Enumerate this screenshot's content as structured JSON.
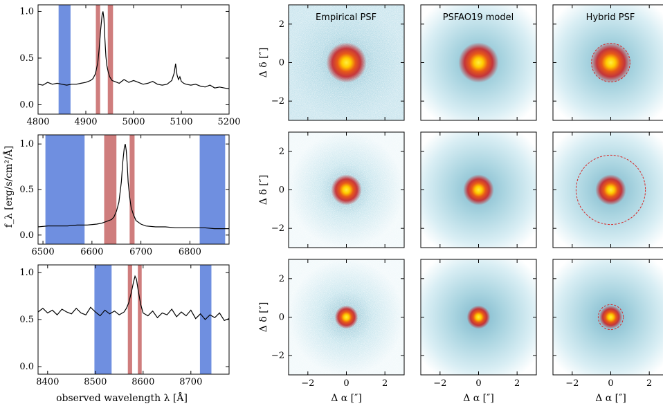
{
  "figure": {
    "spectra_ylabel": "f_λ [erg/s/cm²/Å]",
    "spectra_xlabel": "observed wavelength λ [Å]",
    "psf_xlabel": "Δ α [″]",
    "psf_ylabel": "Δ δ [″]",
    "column_titles": [
      "Empirical PSF",
      "PSFAO19 model",
      "Hybrid PSF"
    ]
  },
  "colors": {
    "blue_band": "#6f8fe0",
    "red_band": "#cf7d7d",
    "psf_core": "#ffdd00",
    "psf_mid": "#cc2a2a",
    "psf_halo": "#a9d4e0",
    "aperture": "#d62828"
  },
  "chart_data": [
    {
      "type": "line",
      "panel": "spectrum-1",
      "xlim": [
        4800,
        5200
      ],
      "ylim": [
        -0.1,
        1.07
      ],
      "xticks": [
        4800,
        4900,
        5000,
        5100,
        5200
      ],
      "yticks": [
        0.0,
        0.5,
        1.0
      ],
      "ytick_labels": [
        "0.0",
        "0.5",
        "1.0"
      ],
      "blue_bands": [
        [
          4843,
          4868
        ]
      ],
      "red_bands": [
        [
          4921,
          4930
        ],
        [
          4946,
          4957
        ]
      ],
      "series": [
        {
          "x": [
            4800,
            4810,
            4820,
            4830,
            4840,
            4850,
            4860,
            4870,
            4880,
            4890,
            4900,
            4910,
            4915,
            4920,
            4925,
            4928,
            4931,
            4934,
            4936,
            4938,
            4940,
            4942,
            4944,
            4947,
            4950,
            4955,
            4960,
            4970,
            4980,
            4990,
            5000,
            5010,
            5020,
            5030,
            5040,
            5050,
            5060,
            5070,
            5080,
            5085,
            5088,
            5091,
            5094,
            5097,
            5100,
            5105,
            5110,
            5120,
            5130,
            5140,
            5150,
            5160,
            5170,
            5180,
            5190,
            5200
          ],
          "y": [
            0.22,
            0.21,
            0.24,
            0.22,
            0.23,
            0.22,
            0.21,
            0.22,
            0.22,
            0.23,
            0.24,
            0.26,
            0.28,
            0.33,
            0.45,
            0.6,
            0.8,
            0.96,
            1.0,
            0.92,
            0.7,
            0.52,
            0.42,
            0.35,
            0.3,
            0.26,
            0.25,
            0.23,
            0.27,
            0.24,
            0.26,
            0.24,
            0.22,
            0.23,
            0.25,
            0.22,
            0.21,
            0.22,
            0.26,
            0.34,
            0.44,
            0.32,
            0.27,
            0.3,
            0.25,
            0.23,
            0.22,
            0.21,
            0.22,
            0.2,
            0.19,
            0.21,
            0.18,
            0.19,
            0.18,
            0.17
          ]
        }
      ]
    },
    {
      "type": "line",
      "panel": "spectrum-2",
      "xlim": [
        6490,
        6880
      ],
      "ylim": [
        -0.1,
        1.1
      ],
      "xticks": [
        6500,
        6600,
        6700,
        6800
      ],
      "yticks": [
        0.0,
        0.5,
        1.0
      ],
      "ytick_labels": [
        "0.0",
        "0.5",
        "1.0"
      ],
      "blue_bands": [
        [
          6505,
          6585
        ],
        [
          6820,
          6872
        ]
      ],
      "red_bands": [
        [
          6625,
          6650
        ],
        [
          6677,
          6687
        ]
      ],
      "series": [
        {
          "x": [
            6490,
            6510,
            6530,
            6550,
            6570,
            6590,
            6610,
            6620,
            6630,
            6640,
            6645,
            6650,
            6655,
            6660,
            6663,
            6666,
            6668,
            6670,
            6672,
            6674,
            6677,
            6680,
            6685,
            6690,
            6700,
            6710,
            6730,
            6750,
            6770,
            6790,
            6810,
            6830,
            6850,
            6870,
            6880
          ],
          "y": [
            0.09,
            0.1,
            0.1,
            0.1,
            0.11,
            0.11,
            0.12,
            0.13,
            0.15,
            0.17,
            0.2,
            0.26,
            0.36,
            0.58,
            0.8,
            0.96,
            1.0,
            0.93,
            0.78,
            0.58,
            0.42,
            0.3,
            0.22,
            0.16,
            0.12,
            0.1,
            0.09,
            0.09,
            0.08,
            0.08,
            0.08,
            0.08,
            0.07,
            0.07,
            0.07
          ]
        }
      ]
    },
    {
      "type": "line",
      "panel": "spectrum-3",
      "xlim": [
        8380,
        8780
      ],
      "ylim": [
        -0.08,
        1.08
      ],
      "xticks": [
        8400,
        8500,
        8600,
        8700
      ],
      "yticks": [
        0.0,
        0.5,
        1.0
      ],
      "ytick_labels": [
        "0.0",
        "0.5",
        "1.0"
      ],
      "blue_bands": [
        [
          8498,
          8534
        ],
        [
          8719,
          8743
        ]
      ],
      "red_bands": [
        [
          8568,
          8577
        ],
        [
          8589,
          8597
        ]
      ],
      "series": [
        {
          "x": [
            8380,
            8390,
            8400,
            8410,
            8420,
            8430,
            8440,
            8450,
            8460,
            8470,
            8480,
            8490,
            8500,
            8510,
            8520,
            8530,
            8540,
            8550,
            8560,
            8565,
            8570,
            8575,
            8580,
            8583,
            8586,
            8590,
            8595,
            8600,
            8610,
            8620,
            8630,
            8640,
            8650,
            8660,
            8670,
            8680,
            8690,
            8700,
            8710,
            8720,
            8730,
            8740,
            8750,
            8760,
            8770,
            8780
          ],
          "y": [
            0.58,
            0.62,
            0.57,
            0.6,
            0.55,
            0.61,
            0.58,
            0.56,
            0.62,
            0.57,
            0.55,
            0.63,
            0.58,
            0.54,
            0.6,
            0.56,
            0.59,
            0.55,
            0.58,
            0.62,
            0.68,
            0.78,
            0.9,
            0.96,
            0.93,
            0.8,
            0.66,
            0.57,
            0.54,
            0.59,
            0.52,
            0.57,
            0.55,
            0.61,
            0.53,
            0.58,
            0.54,
            0.6,
            0.51,
            0.56,
            0.5,
            0.55,
            0.52,
            0.57,
            0.49,
            0.51
          ]
        }
      ]
    },
    {
      "type": "heatmap",
      "panel": "psf-grid",
      "xlim": [
        -3,
        3
      ],
      "ylim": [
        -3,
        3
      ],
      "xticks": [
        -2,
        0,
        2
      ],
      "yticks": [
        -2,
        0,
        2
      ],
      "rows": [
        {
          "row": 1,
          "aperture_radius": 1.0,
          "cells": [
            {
              "kind": "empirical",
              "core": 0.55,
              "halo": "noisy"
            },
            {
              "kind": "model",
              "core": 0.55,
              "halo": "smooth"
            },
            {
              "kind": "hybrid",
              "core": 0.55,
              "halo": "smooth"
            }
          ]
        },
        {
          "row": 2,
          "aperture_radius": 1.8,
          "cells": [
            {
              "kind": "empirical",
              "core": 0.42,
              "halo": "noisy"
            },
            {
              "kind": "model",
              "core": 0.42,
              "halo": "smooth"
            },
            {
              "kind": "hybrid",
              "core": 0.42,
              "halo": "smooth"
            }
          ]
        },
        {
          "row": 3,
          "aperture_radius": 0.65,
          "cells": [
            {
              "kind": "empirical",
              "core": 0.32,
              "halo": "noisy"
            },
            {
              "kind": "model",
              "core": 0.32,
              "halo": "smooth"
            },
            {
              "kind": "hybrid",
              "core": 0.32,
              "halo": "smooth"
            }
          ]
        }
      ]
    }
  ]
}
